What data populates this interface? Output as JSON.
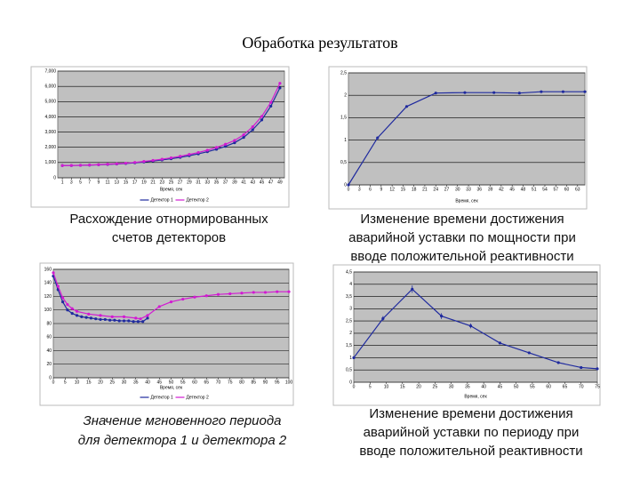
{
  "title": "Обработка результатов",
  "chart_data": [
    {
      "type": "line",
      "caption": [
        "Расхождение отнормированных",
        "счетов детекторов"
      ],
      "italic": false,
      "xlabel": "Время, сек",
      "legend": true,
      "grid": true,
      "xlim": [
        0,
        50
      ],
      "xticks": [
        1,
        3,
        5,
        7,
        9,
        11,
        13,
        15,
        17,
        19,
        21,
        23,
        25,
        27,
        29,
        31,
        33,
        35,
        37,
        39,
        41,
        43,
        45,
        47,
        49
      ],
      "ylim": [
        0,
        7000
      ],
      "yticks": [
        {
          "value": 0,
          "label": "0"
        },
        {
          "value": 1000,
          "label": "1,000"
        },
        {
          "value": 2000,
          "label": "2,000"
        },
        {
          "value": 3000,
          "label": "3,000"
        },
        {
          "value": 4000,
          "label": "4,000"
        },
        {
          "value": 5000,
          "label": "5,000"
        },
        {
          "value": 6000,
          "label": "6,000"
        },
        {
          "value": 7000,
          "label": "7,000"
        }
      ],
      "series": [
        {
          "name": "Детектор 1",
          "color": "#1f2a9e",
          "x": [
            1,
            3,
            5,
            7,
            9,
            11,
            13,
            15,
            17,
            19,
            21,
            23,
            25,
            27,
            29,
            31,
            33,
            35,
            37,
            39,
            41,
            43,
            45,
            47,
            49
          ],
          "values": [
            800,
            805,
            815,
            830,
            850,
            875,
            905,
            940,
            985,
            1035,
            1100,
            1170,
            1250,
            1340,
            1450,
            1570,
            1710,
            1870,
            2060,
            2300,
            2650,
            3150,
            3800,
            4700,
            5900
          ]
        },
        {
          "name": "Детектор 2",
          "color": "#d21ad2",
          "x": [
            1,
            3,
            5,
            7,
            9,
            11,
            13,
            15,
            17,
            19,
            21,
            23,
            25,
            27,
            29,
            31,
            33,
            35,
            37,
            39,
            41,
            43,
            45,
            47,
            49
          ],
          "values": [
            800,
            810,
            820,
            840,
            860,
            890,
            920,
            960,
            1010,
            1070,
            1140,
            1220,
            1310,
            1410,
            1530,
            1660,
            1810,
            1990,
            2200,
            2450,
            2820,
            3350,
            4030,
            4950,
            6200
          ]
        }
      ]
    },
    {
      "type": "line",
      "caption": [
        "Изменение времени достижения",
        "аварийной уставки по мощности при",
        "вводе положительной реактивности"
      ],
      "italic": false,
      "xlabel": "Время, сек",
      "legend": false,
      "grid": true,
      "xlim": [
        0,
        65
      ],
      "xticks": [
        0,
        3,
        6,
        9,
        12,
        15,
        18,
        21,
        24,
        27,
        30,
        33,
        36,
        39,
        42,
        45,
        48,
        51,
        54,
        57,
        60,
        63
      ],
      "ylim": [
        0,
        2.5
      ],
      "yticks": [
        0,
        {
          "value": 0.5,
          "label": "0,5"
        },
        1,
        {
          "value": 1.5,
          "label": "1,5"
        },
        2,
        {
          "value": 2.5,
          "label": "2,5"
        }
      ],
      "series": [
        {
          "name": "Время",
          "color": "#1f2a9e",
          "x": [
            0,
            8,
            16,
            24,
            32,
            40,
            47,
            53,
            59,
            65
          ],
          "values": [
            0,
            1.05,
            1.75,
            2.05,
            2.06,
            2.06,
            2.05,
            2.08,
            2.08,
            2.08
          ]
        }
      ]
    },
    {
      "type": "line",
      "caption": [
        "Значение мгновенного периода",
        "для детектора 1 и детектора 2"
      ],
      "italic": true,
      "xlabel": "Время, сек",
      "legend": true,
      "grid": true,
      "xlim": [
        0,
        100
      ],
      "xticks": [
        0,
        5,
        10,
        15,
        20,
        25,
        30,
        35,
        40,
        45,
        50,
        55,
        60,
        65,
        70,
        75,
        80,
        85,
        90,
        95,
        100
      ],
      "ylim": [
        0,
        160
      ],
      "yticks": [
        0,
        20,
        40,
        60,
        80,
        100,
        120,
        140,
        160
      ],
      "series": [
        {
          "name": "Детектор 1",
          "color": "#1f2a9e",
          "x": [
            0,
            2,
            4,
            6,
            8,
            10,
            12,
            14,
            16,
            18,
            20,
            22,
            24,
            26,
            28,
            30,
            32,
            34,
            36,
            38,
            40
          ],
          "values": [
            150,
            130,
            112,
            100,
            95,
            92,
            90,
            89,
            88,
            87,
            86,
            86,
            85,
            85,
            84,
            84,
            84,
            83,
            83,
            83,
            88
          ]
        },
        {
          "name": "Детектор 2",
          "color": "#d21ad2",
          "x": [
            0,
            2,
            4,
            6,
            8,
            10,
            15,
            20,
            25,
            30,
            35,
            37,
            40,
            45,
            50,
            55,
            60,
            65,
            70,
            75,
            80,
            85,
            90,
            95,
            100
          ],
          "values": [
            155,
            135,
            118,
            108,
            102,
            98,
            94,
            92,
            90,
            90,
            88,
            87,
            92,
            105,
            112,
            116,
            119,
            121,
            123,
            124,
            125,
            126,
            126,
            127,
            127
          ]
        }
      ]
    },
    {
      "type": "line",
      "caption": [
        "Изменение времени достижения",
        "аварийной уставки по периоду при",
        "вводе положительной реактивности"
      ],
      "italic": false,
      "xlabel": "Время, сек",
      "legend": false,
      "grid": true,
      "xlim": [
        0,
        75
      ],
      "xticks": [
        0,
        5,
        10,
        15,
        20,
        25,
        30,
        35,
        40,
        45,
        50,
        55,
        60,
        65,
        70,
        75
      ],
      "ylim": [
        0,
        4.5
      ],
      "yticks": [
        0,
        {
          "value": 0.5,
          "label": "0,5"
        },
        1,
        {
          "value": 1.5,
          "label": "1,5"
        },
        2,
        {
          "value": 2.5,
          "label": "2,5"
        },
        3,
        {
          "value": 3.5,
          "label": "3,5"
        },
        4,
        {
          "value": 4.5,
          "label": "4,5"
        }
      ],
      "series": [
        {
          "name": "Время",
          "color": "#1f2a9e",
          "x": [
            0,
            9,
            18,
            27,
            36,
            45,
            54,
            63,
            70,
            75
          ],
          "values": [
            1.0,
            2.6,
            3.8,
            2.7,
            2.3,
            1.6,
            1.2,
            0.8,
            0.6,
            0.55
          ],
          "errors": [
            0.05,
            0.1,
            0.15,
            0.12,
            0.1,
            0.05,
            0.05,
            0.05,
            0.03,
            0.03
          ]
        }
      ]
    }
  ]
}
